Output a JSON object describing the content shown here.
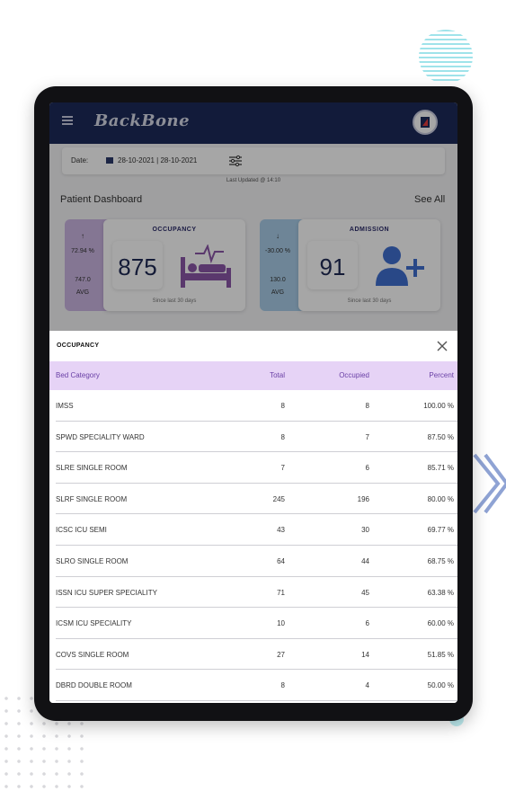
{
  "app": {
    "logo_text": "BackBone",
    "accent_color": "#1c2a5a"
  },
  "date_bar": {
    "label": "Date:",
    "value": "28-10-2021 | 28-10-2021"
  },
  "last_updated": "Last Updated @ 14:10",
  "dashboard": {
    "title": "Patient Dashboard",
    "see_all": "See All"
  },
  "cards": {
    "occupancy": {
      "arrow": "↑",
      "percent": "72.94 %",
      "avg": "747.0",
      "avg_label": "AVG",
      "title": "OCCUPANCY",
      "value": "875",
      "note": "Since last 30 days",
      "icon": "bed-icon",
      "color": "#cbb5e2"
    },
    "admission": {
      "arrow": "↓",
      "percent": "-30.00 %",
      "avg": "130.0",
      "avg_label": "AVG",
      "title": "ADMISSION",
      "value": "91",
      "note": "Since last 30 days",
      "icon": "add-user-icon",
      "color": "#a9cde8"
    }
  },
  "sheet": {
    "title": "OCCUPANCY",
    "columns": {
      "name": "Bed Category",
      "total": "Total",
      "occupied": "Occupied",
      "percent": "Percent"
    },
    "header_color": "#e6d3f6",
    "rows": [
      {
        "name": "IMSS",
        "total": "8",
        "occupied": "8",
        "percent": "100.00 %"
      },
      {
        "name": "SPWD SPECIALITY WARD",
        "total": "8",
        "occupied": "7",
        "percent": "87.50 %"
      },
      {
        "name": "SLRE SINGLE ROOM",
        "total": "7",
        "occupied": "6",
        "percent": "85.71 %"
      },
      {
        "name": "SLRF SINGLE ROOM",
        "total": "245",
        "occupied": "196",
        "percent": "80.00 %"
      },
      {
        "name": "ICSC ICU SEMI",
        "total": "43",
        "occupied": "30",
        "percent": "69.77 %"
      },
      {
        "name": "SLRO SINGLE ROOM",
        "total": "64",
        "occupied": "44",
        "percent": "68.75 %"
      },
      {
        "name": "ISSN ICU SUPER SPECIALITY",
        "total": "71",
        "occupied": "45",
        "percent": "63.38 %"
      },
      {
        "name": "ICSM ICU SPECIALITY",
        "total": "10",
        "occupied": "6",
        "percent": "60.00 %"
      },
      {
        "name": "COVS SINGLE ROOM",
        "total": "27",
        "occupied": "14",
        "percent": "51.85 %"
      },
      {
        "name": "DBRD DOUBLE ROOM",
        "total": "8",
        "occupied": "4",
        "percent": "50.00 %"
      }
    ]
  }
}
